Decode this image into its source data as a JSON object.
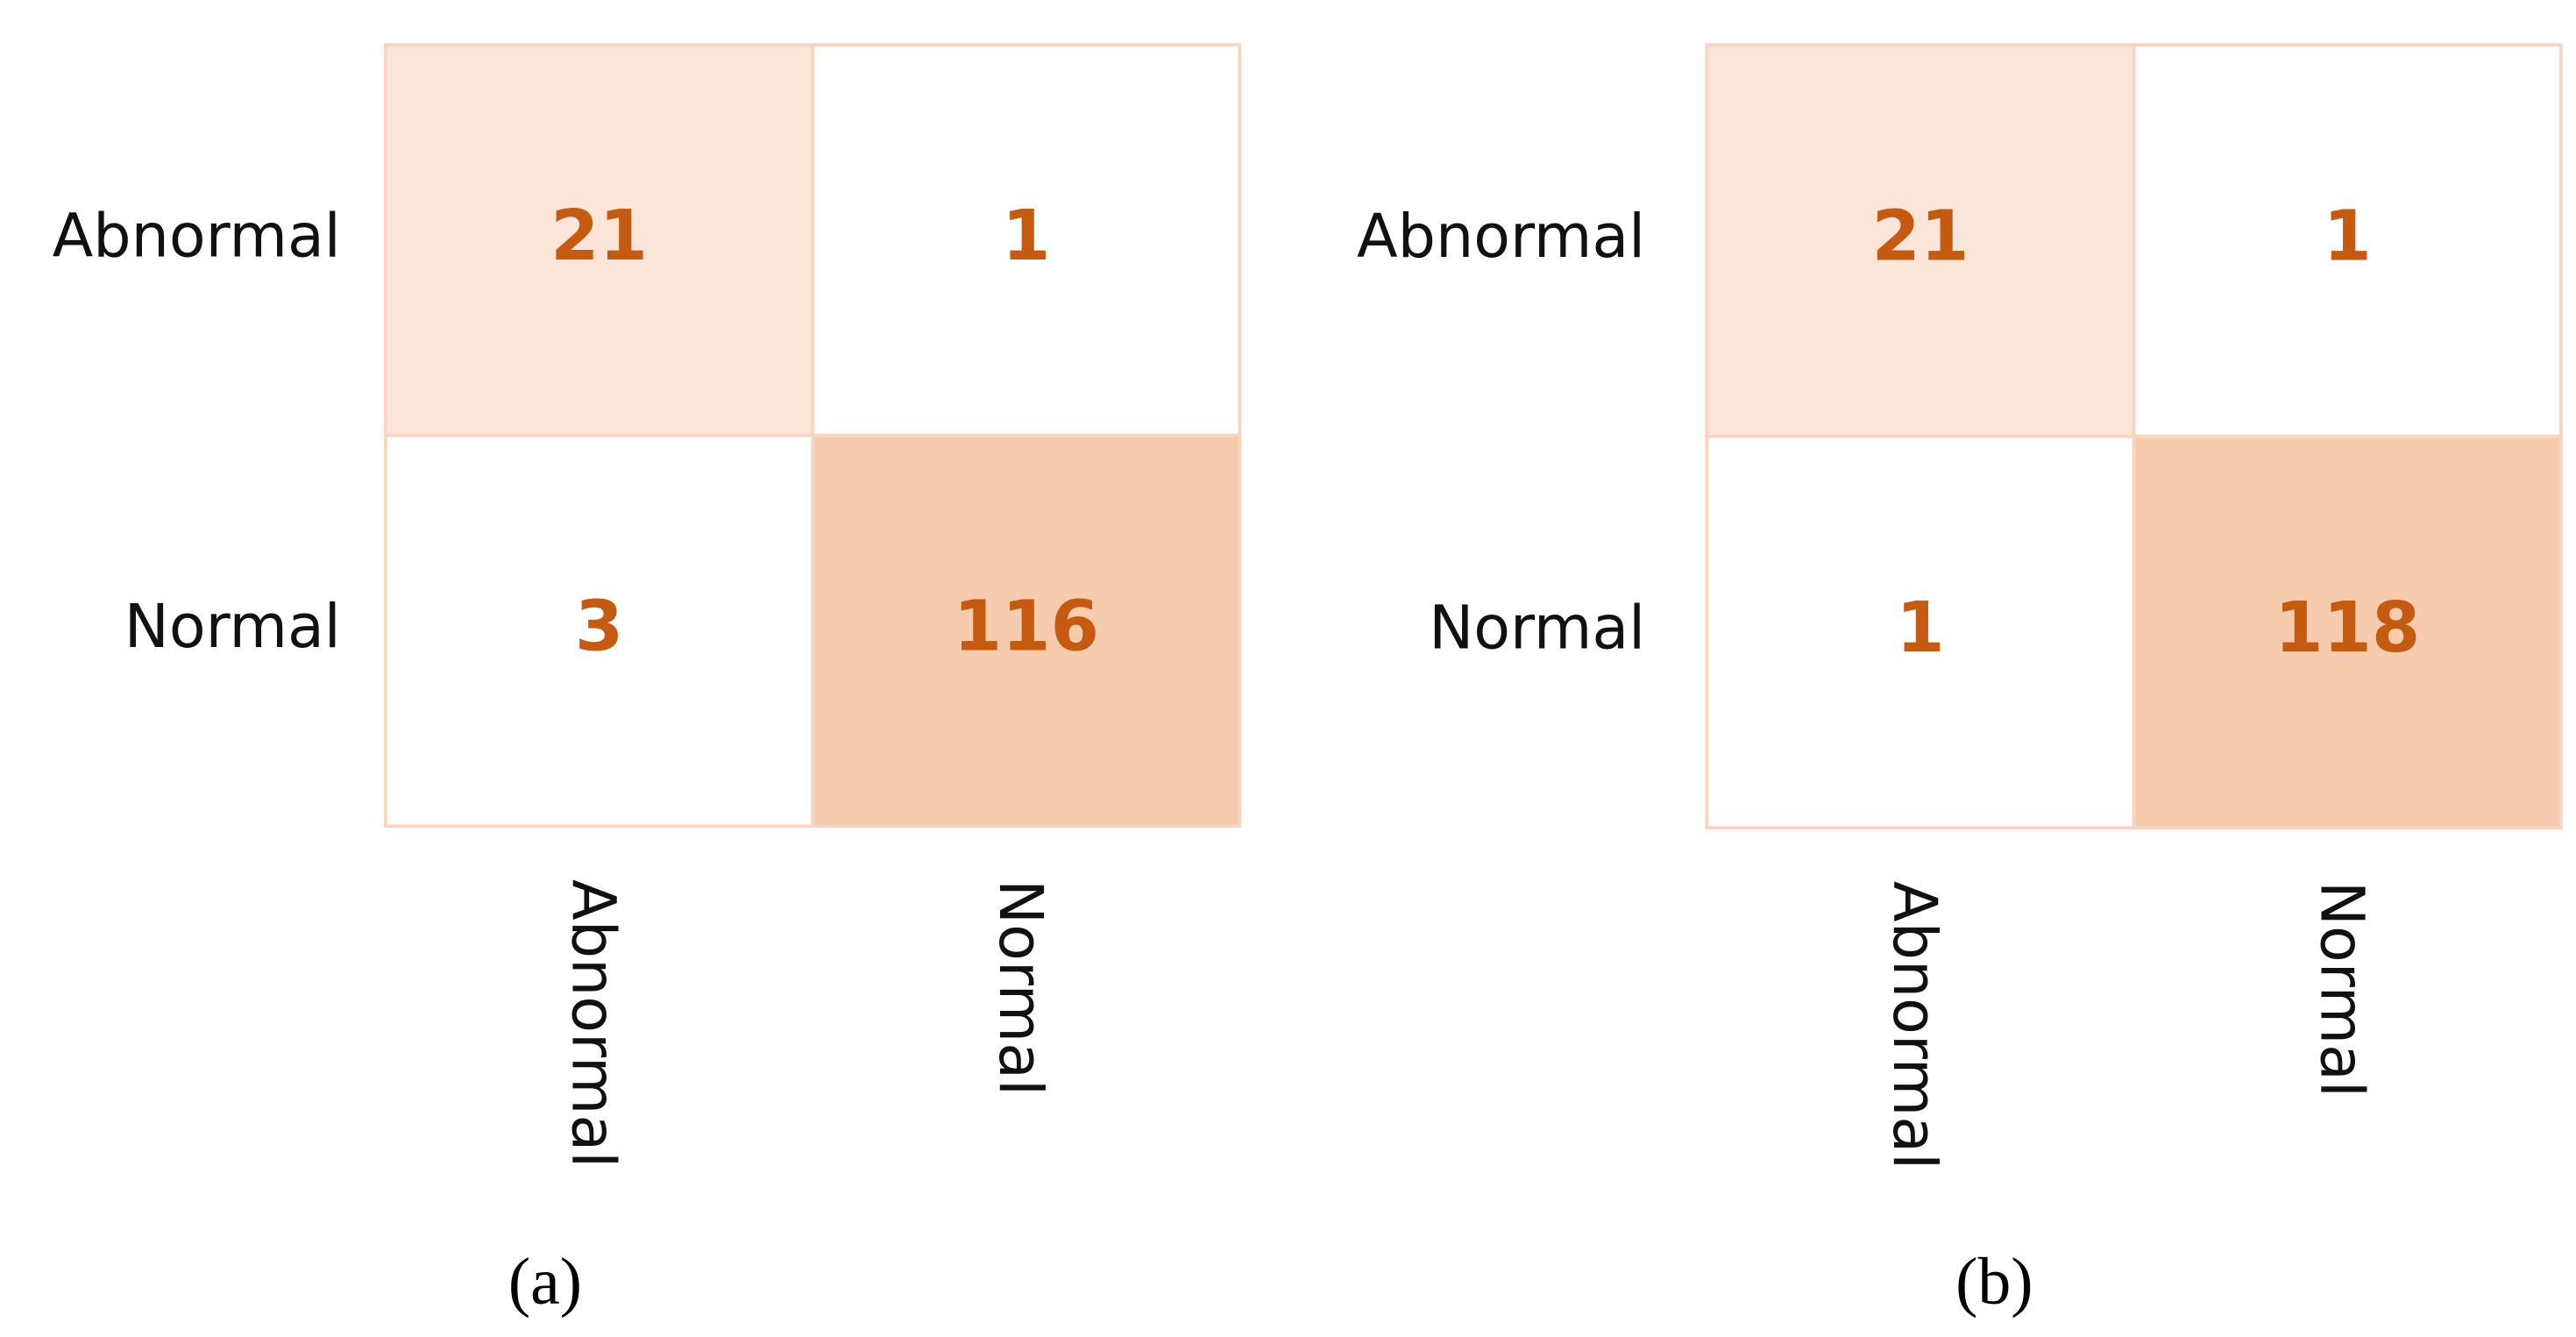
{
  "chart_data": [
    {
      "type": "heatmap",
      "caption": "(a)",
      "rows": [
        "Abnormal",
        "Normal"
      ],
      "columns": [
        "Abnormal",
        "Normal"
      ],
      "values": [
        [
          21,
          1
        ],
        [
          3,
          116
        ]
      ],
      "cell_colors": [
        [
          "#fbe5d9",
          "#ffffff"
        ],
        [
          "#ffffff",
          "#f7cbad"
        ]
      ],
      "value_color": "#c55a11"
    },
    {
      "type": "heatmap",
      "caption": "(b)",
      "rows": [
        "Abnormal",
        "Normal"
      ],
      "columns": [
        "Abnormal",
        "Normal"
      ],
      "values": [
        [
          21,
          1
        ],
        [
          1,
          118
        ]
      ],
      "cell_colors": [
        [
          "#fbe5d9",
          "#ffffff"
        ],
        [
          "#ffffff",
          "#f7cbad"
        ]
      ],
      "value_color": "#c55a11"
    }
  ]
}
